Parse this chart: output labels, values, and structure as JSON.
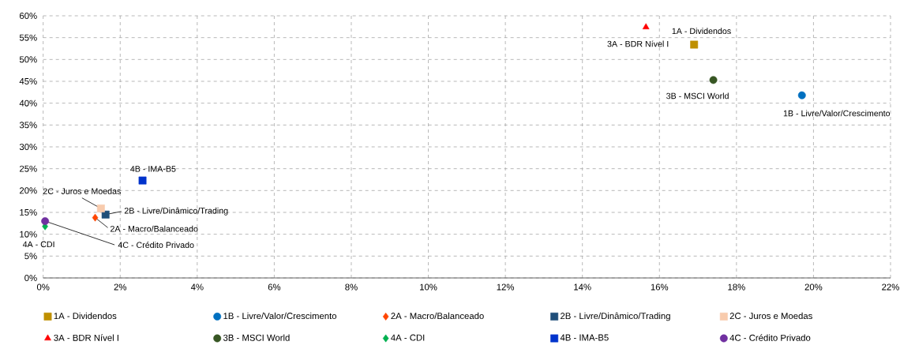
{
  "chart_data": {
    "type": "scatter",
    "series": [
      {
        "name": "1A - Dividendos",
        "color": "#bf9000",
        "marker": "square",
        "x": [
          16.9
        ],
        "values": [
          53.4
        ]
      },
      {
        "name": "1B - Livre/Valor/Crescimento",
        "color": "#0070c0",
        "marker": "circle",
        "x": [
          19.7
        ],
        "values": [
          41.8
        ]
      },
      {
        "name": "2A - Macro/Balanceado",
        "color": "#ff4500",
        "marker": "diamond",
        "x": [
          1.35
        ],
        "values": [
          13.8
        ]
      },
      {
        "name": "2B - Livre/Dinâmico/Trading",
        "color": "#1f4e79",
        "marker": "square",
        "x": [
          1.62
        ],
        "values": [
          14.5
        ]
      },
      {
        "name": "2C - Juros e Moedas",
        "color": "#f8cbad",
        "marker": "square",
        "x": [
          1.5
        ],
        "values": [
          15.9
        ]
      },
      {
        "name": "3A - BDR Nível I",
        "color": "#ff0000",
        "marker": "triangle",
        "x": [
          15.65
        ],
        "values": [
          57.4
        ]
      },
      {
        "name": "3B - MSCI World",
        "color": "#375623",
        "marker": "circle",
        "x": [
          17.4
        ],
        "values": [
          45.3
        ]
      },
      {
        "name": "4A - CDI",
        "color": "#00b050",
        "marker": "diamond",
        "x": [
          0.05
        ],
        "values": [
          11.8
        ]
      },
      {
        "name": "4B - IMA-B5",
        "color": "#0033cc",
        "marker": "square",
        "x": [
          2.58
        ],
        "values": [
          22.3
        ]
      },
      {
        "name": "4C - Crédito Privado",
        "color": "#7030a0",
        "marker": "circle",
        "x": [
          0.05
        ],
        "values": [
          13.0
        ]
      }
    ],
    "annotations": [
      {
        "text": "1A - Dividendos",
        "x": 16.9,
        "y": 53.4
      },
      {
        "text": "1B - Livre/Valor/Crescimento",
        "x": 19.7,
        "y": 41.8
      },
      {
        "text": "2A - Macro/Balanceado",
        "x": 1.35,
        "y": 13.8
      },
      {
        "text": "2B - Livre/Dinâmico/Trading",
        "x": 1.62,
        "y": 14.5
      },
      {
        "text": "2C - Juros e Moedas",
        "x": 1.5,
        "y": 15.9
      },
      {
        "text": "3A - BDR Nível I",
        "x": 15.65,
        "y": 57.4
      },
      {
        "text": "3B - MSCI World",
        "x": 17.4,
        "y": 45.3
      },
      {
        "text": "4A - CDI",
        "x": 0.05,
        "y": 11.8
      },
      {
        "text": "4B - IMA-B5",
        "x": 2.58,
        "y": 22.3
      },
      {
        "text": "4C - Crédito Privado",
        "x": 0.05,
        "y": 13.0
      }
    ],
    "xlim": [
      0,
      22
    ],
    "ylim": [
      0,
      60
    ],
    "xticks": [
      {
        "value": 0,
        "label": "0%"
      },
      {
        "value": 2,
        "label": "2%"
      },
      {
        "value": 4,
        "label": "4%"
      },
      {
        "value": 6,
        "label": "6%"
      },
      {
        "value": 8,
        "label": "8%"
      },
      {
        "value": 10,
        "label": "10%"
      },
      {
        "value": 12,
        "label": "12%"
      },
      {
        "value": 14,
        "label": "14%"
      },
      {
        "value": 16,
        "label": "16%"
      },
      {
        "value": 18,
        "label": "18%"
      },
      {
        "value": 20,
        "label": "20%"
      },
      {
        "value": 22,
        "label": "22%"
      }
    ],
    "yticks": [
      {
        "value": 0,
        "label": "0%"
      },
      {
        "value": 5,
        "label": "5%"
      },
      {
        "value": 10,
        "label": "10%"
      },
      {
        "value": 15,
        "label": "15%"
      },
      {
        "value": 20,
        "label": "20%"
      },
      {
        "value": 25,
        "label": "25%"
      },
      {
        "value": 30,
        "label": "30%"
      },
      {
        "value": 35,
        "label": "35%"
      },
      {
        "value": 40,
        "label": "40%"
      },
      {
        "value": 45,
        "label": "45%"
      },
      {
        "value": 50,
        "label": "50%"
      },
      {
        "value": 55,
        "label": "55%"
      },
      {
        "value": 60,
        "label": "60%"
      }
    ],
    "grid": true,
    "legend": "bottom"
  }
}
